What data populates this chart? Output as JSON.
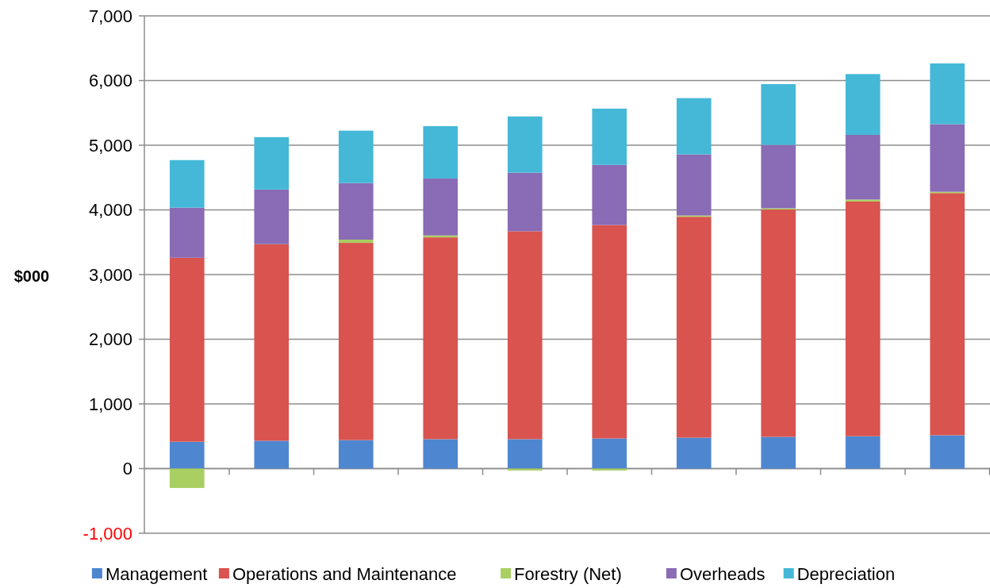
{
  "chart_data": {
    "type": "bar",
    "ylabel": "$000",
    "stacked": true,
    "categories": [
      null,
      null,
      null,
      null,
      null,
      null,
      null,
      null,
      null,
      null
    ],
    "series": [
      {
        "name": "Management",
        "color": "#4f86d0",
        "values": [
          415,
          430,
          440,
          455,
          455,
          466,
          478,
          490,
          500,
          515
        ]
      },
      {
        "name": "Operations and Maintenance",
        "color": "#d9534f",
        "values": [
          2845,
          3040,
          3050,
          3120,
          3215,
          3300,
          3415,
          3515,
          3630,
          3745
        ]
      },
      {
        "name": "Forestry (Net)",
        "color": "#a9cf62",
        "values": [
          -300,
          0,
          50,
          30,
          -30,
          -30,
          20,
          20,
          30,
          20
        ]
      },
      {
        "name": "Overheads",
        "color": "#8a6bb5",
        "values": [
          775,
          845,
          875,
          880,
          905,
          930,
          945,
          980,
          1000,
          1045
        ]
      },
      {
        "name": "Depreciation",
        "color": "#45b8d8",
        "values": [
          735,
          810,
          810,
          810,
          870,
          870,
          870,
          940,
          940,
          940
        ]
      }
    ],
    "ylim": [
      -1000,
      7000
    ],
    "yticks": [
      {
        "value": -1000,
        "label": "-1,000"
      },
      0,
      {
        "value": 1000,
        "label": "1,000"
      },
      {
        "value": 2000,
        "label": "2,000"
      },
      {
        "value": 3000,
        "label": "3,000"
      },
      {
        "value": 4000,
        "label": "4,000"
      },
      {
        "value": 5000,
        "label": "5,000"
      },
      {
        "value": 6000,
        "label": "6,000"
      },
      {
        "value": 7000,
        "label": "7,000"
      }
    ],
    "grid": "y",
    "legend": "bottom"
  }
}
